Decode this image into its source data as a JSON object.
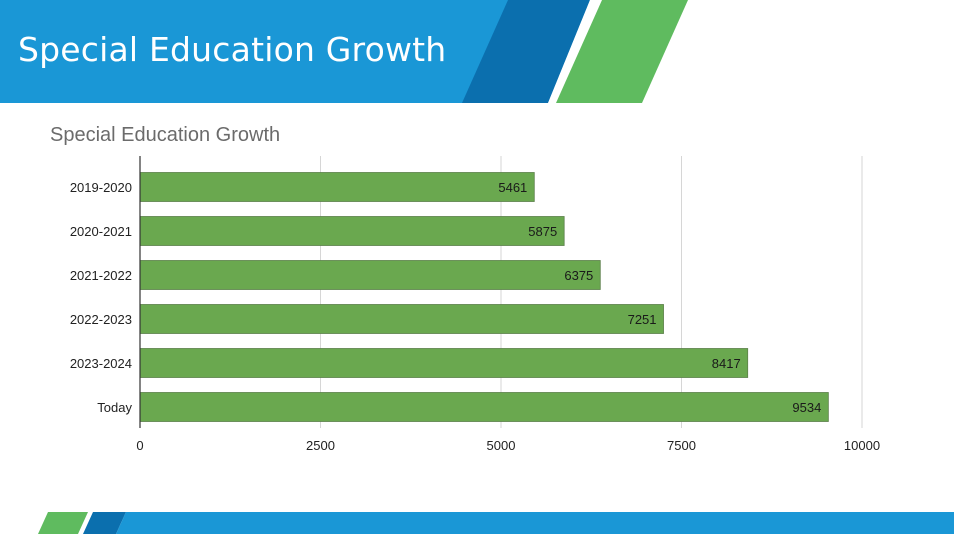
{
  "slide": {
    "title": "Special Education Growth",
    "colors": {
      "blue": "#1a97d6",
      "dark_blue": "#0b6fae",
      "green": "#5fbb5f",
      "bar": "#6aa84f"
    }
  },
  "chart_data": {
    "type": "bar",
    "orientation": "horizontal",
    "title": "Special Education Growth",
    "categories": [
      "2019-2020",
      "2020-2021",
      "2021-2022",
      "2022-2023",
      "2023-2024",
      "Today"
    ],
    "values": [
      5461,
      5875,
      6375,
      7251,
      8417,
      9534
    ],
    "xlim": [
      0,
      10000
    ],
    "xticks": [
      0,
      2500,
      5000,
      7500,
      10000
    ],
    "grid": true,
    "legend": "none",
    "bar_color": "#6aa84f"
  }
}
